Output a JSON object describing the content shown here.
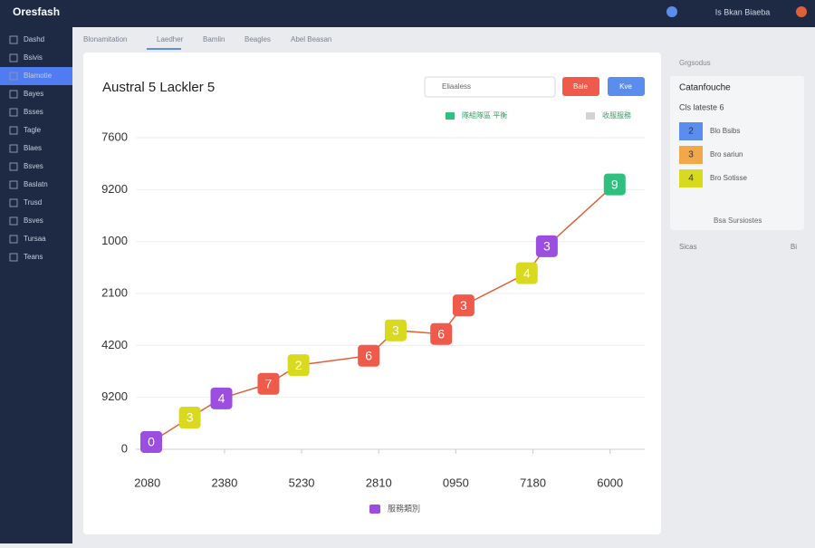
{
  "header": {
    "brand": "Oresfash",
    "status": "Is Bkan Biaeba"
  },
  "sidebar": {
    "items": [
      "Dashd",
      "Bsivis",
      "Blamotie",
      "Bayes",
      "Bsses",
      "Tagle",
      "Blaes",
      "Bsves",
      "Baslatn",
      "Trusd",
      "Bsves",
      "Tursaa",
      "Teans"
    ],
    "active": 2
  },
  "tabs": [
    "Blonamitation",
    "Laedher",
    "Bamlin",
    "Beagles",
    "Abel Beasan"
  ],
  "toolbar": {
    "select": "Eliaaless",
    "buttons": [
      {
        "label": "Bale",
        "color": "#ef5a4a"
      },
      {
        "label": "Kve",
        "color": "#5b8def"
      }
    ]
  },
  "chart_data": {
    "type": "line",
    "title": "Austral 5 Lackler 5",
    "legend": [
      {
        "label": "隊組隊區 平衡",
        "color": "#2fbf7f"
      },
      {
        "label": "收服服務",
        "color": "#d0d3d8"
      }
    ],
    "bottom_legend": {
      "label": "服務類別",
      "color": "#9b4ee0"
    },
    "series": [
      {
        "color": "#e0603a",
        "x": [
          0.05,
          0.55,
          0.96,
          1.57,
          1.96,
          2.87,
          3.22,
          3.81,
          4.1,
          4.92,
          5.18,
          6.06
        ],
        "values": [
          0.14,
          0.61,
          0.98,
          1.26,
          1.62,
          1.8,
          2.29,
          2.22,
          2.77,
          3.39,
          3.91,
          5.1
        ],
        "badges": [
          "0",
          "3",
          "4",
          "7",
          "2",
          "6",
          "3",
          "6",
          "3",
          "4",
          "3",
          "9"
        ],
        "badge_colors": [
          "#9b4ee0",
          "#d9d920",
          "#9b4ee0",
          "#ef5a4a",
          "#d9d920",
          "#ef5a4a",
          "#d9d920",
          "#ef5a4a",
          "#ef5a4a",
          "#d9d920",
          "#9b4ee0",
          "#2fbf7f"
        ]
      }
    ],
    "xlim": [
      -0.15,
      6.45
    ],
    "ylim": [
      0,
      6
    ],
    "xticks": [
      {
        "value": 0,
        "label": "2080"
      },
      {
        "value": 1,
        "label": "2380"
      },
      {
        "value": 2,
        "label": "5230"
      },
      {
        "value": 3,
        "label": "2810"
      },
      {
        "value": 4,
        "label": "0950"
      },
      {
        "value": 5,
        "label": "7180"
      },
      {
        "value": 6,
        "label": "6000"
      }
    ],
    "yticks": [
      0,
      {
        "value": 1,
        "label": "9200"
      },
      {
        "value": 2,
        "label": "4200"
      },
      {
        "value": 3,
        "label": "2100"
      },
      {
        "value": 4,
        "label": "1000"
      },
      {
        "value": 5,
        "label": "9200"
      },
      {
        "value": 6,
        "label": "7600"
      }
    ],
    "grid": true
  },
  "side_panel": {
    "title": "Grgsodus",
    "card_title": "Catanfouche",
    "subtitle": "Cls lateste 6",
    "items": [
      {
        "badge": "2",
        "label": "Blo Bsibs",
        "color": "#5b8def"
      },
      {
        "badge": "3",
        "label": "Bro sariun",
        "color": "#f0a84a"
      },
      {
        "badge": "4",
        "label": "Bro Sotisse",
        "color": "#d9d920"
      }
    ],
    "card_footer": "Bsa Sursiostes",
    "footer_left": "Sicas",
    "footer_right": "Bi"
  }
}
